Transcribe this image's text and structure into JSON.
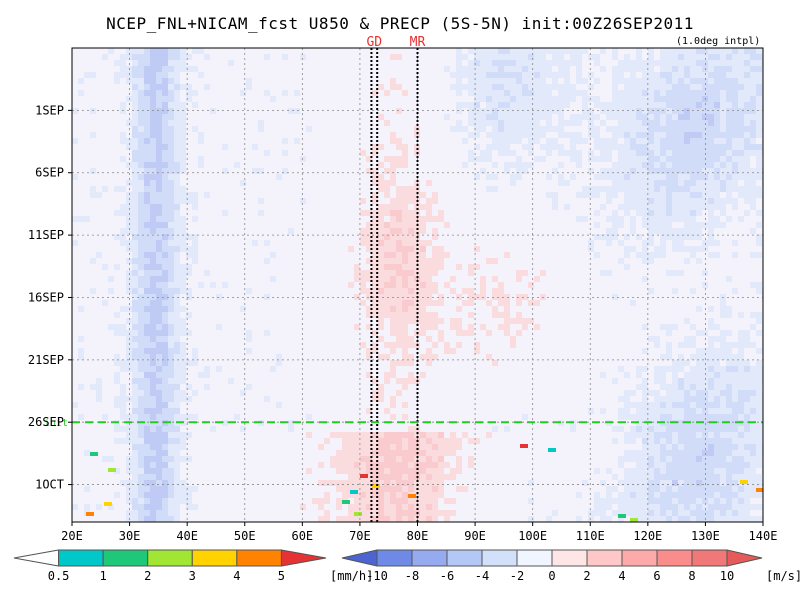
{
  "chart_data": {
    "type": "heatmap",
    "title": "NCEP_FNL+NICAM_fcst U850 & PRECP (5S-5N) init:00Z26SEP2011",
    "subtitle": "(1.0deg intpl)",
    "x": {
      "ticks": [
        "20E",
        "30E",
        "40E",
        "50E",
        "60E",
        "70E",
        "80E",
        "90E",
        "100E",
        "110E",
        "120E",
        "130E",
        "140E"
      ],
      "range_deg": [
        20,
        140
      ]
    },
    "y": {
      "ticks": [
        "1SEP",
        "6SEP",
        "11SEP",
        "16SEP",
        "21SEP",
        "26SEP",
        "1OCT"
      ],
      "range": [
        "2011-08-27",
        "2011-10-04"
      ],
      "direction": "time increases downward"
    },
    "init_line": {
      "date": "2011-09-26",
      "label": "init",
      "color": "#22cc22"
    },
    "markers": [
      {
        "label": "GD",
        "lon": 72.0,
        "color": "#e83030"
      },
      {
        "label": "GD",
        "lon": 73.0,
        "color": "#e83030"
      },
      {
        "label": "MR",
        "lon": 80.0,
        "color": "#e83030"
      }
    ],
    "precip_colorbar": {
      "unit": "[mm/h]",
      "ticks": [
        "0.5",
        "1",
        "2",
        "3",
        "4",
        "5"
      ],
      "colors": [
        "#ffffff",
        "#00c8c8",
        "#1ec878",
        "#a0e632",
        "#ffd200",
        "#ff8200",
        "#e63232"
      ]
    },
    "u850_colorbar": {
      "unit": "[m/s]",
      "ticks": [
        "-10",
        "-8",
        "-6",
        "-4",
        "-2",
        "0",
        "2",
        "4",
        "6",
        "8",
        "10"
      ],
      "colors": [
        "#4b64d2",
        "#6e8ae6",
        "#96aaf0",
        "#b4c8f5",
        "#d2e0fa",
        "#f0f5ff",
        "#ffe6e6",
        "#ffc8c8",
        "#ffaaaa",
        "#fa8c8c",
        "#f07878",
        "#e65a5a"
      ]
    }
  }
}
